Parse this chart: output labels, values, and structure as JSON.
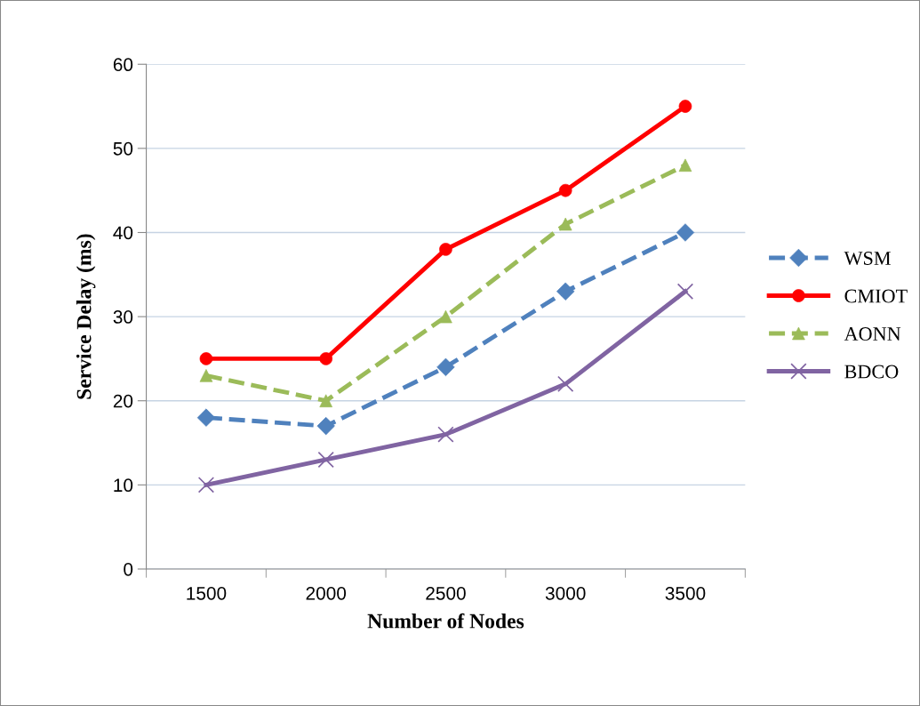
{
  "chart_data": {
    "type": "line",
    "xlabel": "Number of Nodes",
    "ylabel": "Service Delay (ms)",
    "categories": [
      "1500",
      "2000",
      "2500",
      "3000",
      "3500"
    ],
    "series": [
      {
        "name": "WSM",
        "color": "#4f81bd",
        "marker": "diamond",
        "line_style": "dashed",
        "values": [
          18,
          17,
          24,
          33,
          40
        ]
      },
      {
        "name": "CMIOT",
        "color": "#ff0000",
        "marker": "circle",
        "line_style": "solid",
        "values": [
          25,
          25,
          38,
          45,
          55
        ]
      },
      {
        "name": "AONN",
        "color": "#9bbb59",
        "marker": "triangle",
        "line_style": "dashed",
        "values": [
          23,
          20,
          30,
          41,
          48
        ]
      },
      {
        "name": "BDCO",
        "color": "#8064a2",
        "marker": "cross",
        "line_style": "solid",
        "values": [
          10,
          13,
          16,
          22,
          33
        ]
      }
    ],
    "ylim": [
      0,
      60
    ],
    "yticks": [
      0,
      10,
      20,
      30,
      40,
      50,
      60
    ],
    "grid": "y",
    "legend": "right"
  }
}
